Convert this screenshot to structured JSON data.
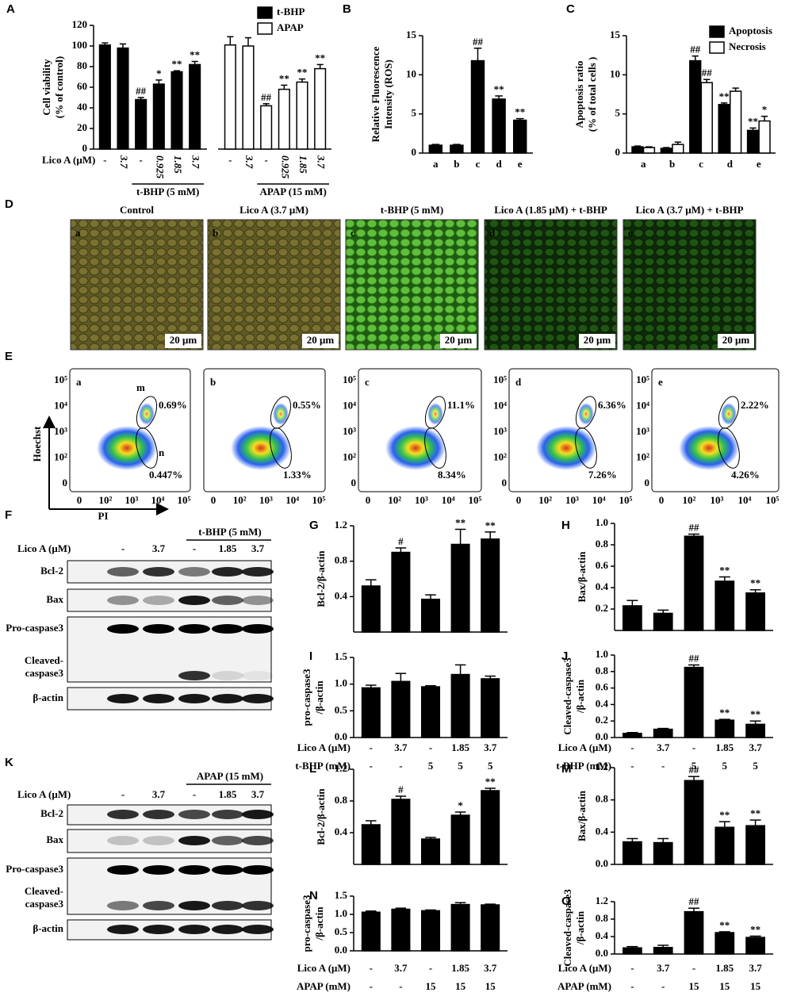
{
  "chart_data": [
    {
      "panel": "A",
      "type": "bar",
      "ylabel": [
        "Cell viability",
        "(% of control)"
      ],
      "ylim": [
        0,
        120
      ],
      "yticks": [
        0,
        20,
        40,
        60,
        80,
        100,
        120
      ],
      "x_label": "Lico A (μM)",
      "categories": [
        "-",
        "3.7",
        "-",
        "0.925",
        "1.85",
        "3.7",
        "-",
        "3.7",
        "-",
        "0.925",
        "1.85",
        "3.7"
      ],
      "groups": [
        "t-BHP (5 mM)",
        "APAP (15 mM)"
      ],
      "series": [
        {
          "name": "t-BHP",
          "color": "#000000",
          "values": [
            101,
            98,
            48,
            63,
            75,
            82,
            null,
            null,
            null,
            null,
            null,
            null
          ],
          "errors": [
            2,
            4,
            2,
            4,
            1,
            3,
            null,
            null,
            null,
            null,
            null,
            null
          ],
          "annotations": [
            null,
            null,
            "##",
            "*",
            "**",
            "**",
            null,
            null,
            null,
            null,
            null,
            null
          ]
        },
        {
          "name": "APAP",
          "color": "#ffffff",
          "values": [
            null,
            null,
            null,
            null,
            null,
            null,
            101,
            100,
            42,
            58,
            65,
            78
          ],
          "errors": [
            null,
            null,
            null,
            null,
            null,
            null,
            8,
            8,
            2,
            4,
            3,
            4
          ],
          "annotations": [
            null,
            null,
            null,
            null,
            null,
            null,
            null,
            null,
            "##",
            "**",
            "**",
            "**"
          ]
        }
      ]
    },
    {
      "panel": "B",
      "type": "bar",
      "ylabel": [
        "Relative Fluorescence",
        "Intensity (ROS)"
      ],
      "ylim": [
        0,
        15
      ],
      "yticks": [
        0,
        5,
        10,
        15
      ],
      "categories": [
        "a",
        "b",
        "c",
        "d",
        "e"
      ],
      "series": [
        {
          "color": "#000000",
          "values": [
            1.0,
            1.0,
            11.8,
            6.9,
            4.2
          ],
          "errors": [
            0.1,
            0.1,
            1.6,
            0.4,
            0.2
          ],
          "annotations": [
            null,
            null,
            "##",
            "**",
            "**"
          ]
        }
      ]
    },
    {
      "panel": "C",
      "type": "bar",
      "ylabel": [
        "Apoptosis ratio",
        "(% of total cells )"
      ],
      "ylim": [
        0,
        15
      ],
      "yticks": [
        0,
        5,
        10,
        15
      ],
      "categories": [
        "a",
        "b",
        "c",
        "d",
        "e"
      ],
      "series": [
        {
          "name": "Apoptosis",
          "color": "#000000",
          "values": [
            0.8,
            0.6,
            11.8,
            6.2,
            2.9
          ],
          "errors": [
            0.1,
            0.1,
            0.6,
            0.2,
            0.3
          ],
          "annotations": [
            null,
            null,
            "##",
            "**",
            "**"
          ]
        },
        {
          "name": "Necrosis",
          "color": "#ffffff",
          "values": [
            0.7,
            1.1,
            9.0,
            7.9,
            4.1
          ],
          "errors": [
            0.1,
            0.3,
            0.4,
            0.4,
            0.6
          ],
          "annotations": [
            null,
            null,
            "##",
            null,
            "*"
          ]
        }
      ]
    },
    {
      "panel": "G",
      "type": "bar",
      "ylabel": [
        "Bcl-2/β-actin"
      ],
      "ylim": [
        0,
        1.2
      ],
      "yticks": [
        0.4,
        0.8,
        1.2
      ],
      "series": [
        {
          "color": "#000000",
          "values": [
            0.52,
            0.9,
            0.37,
            0.99,
            1.05
          ],
          "errors": [
            0.07,
            0.05,
            0.05,
            0.17,
            0.08
          ],
          "annotations": [
            null,
            "#",
            null,
            "**",
            "**"
          ]
        }
      ]
    },
    {
      "panel": "H",
      "type": "bar",
      "ylabel": [
        "Bax/β-actin"
      ],
      "ylim": [
        0,
        1.0
      ],
      "yticks": [
        0.2,
        0.4,
        0.6,
        0.8,
        {
          "value": 1,
          "label": "1.0"
        }
      ],
      "series": [
        {
          "color": "#000000",
          "values": [
            0.23,
            0.16,
            0.88,
            0.46,
            0.35
          ],
          "errors": [
            0.05,
            0.03,
            0.02,
            0.04,
            0.03
          ],
          "annotations": [
            null,
            null,
            "##",
            "**",
            "**"
          ]
        }
      ]
    },
    {
      "panel": "I",
      "type": "bar",
      "ylabel": [
        "pro-caspase3",
        "/β-actin"
      ],
      "ylim": [
        0,
        1.5
      ],
      "yticks": [
        {
          "value": 0,
          "label": "0.0"
        },
        0.5,
        {
          "value": 1,
          "label": "1.0"
        },
        1.5
      ],
      "series": [
        {
          "color": "#000000",
          "values": [
            0.93,
            1.05,
            0.95,
            1.18,
            1.1
          ],
          "errors": [
            0.05,
            0.15,
            0.02,
            0.18,
            0.05
          ],
          "annotations": [
            null,
            null,
            null,
            null,
            null
          ]
        }
      ],
      "xrows": [
        {
          "label": "Lico A (μM)",
          "values": [
            "-",
            "3.7",
            "-",
            "1.85",
            "3.7"
          ]
        },
        {
          "label": "t-BHP (mM)",
          "values": [
            "-",
            "-",
            "5",
            "5",
            "5"
          ]
        }
      ]
    },
    {
      "panel": "J",
      "type": "bar",
      "ylabel": [
        "Cleaved-caspase3",
        "/β-actin"
      ],
      "ylim": [
        0,
        1.0
      ],
      "yticks": [
        {
          "value": 0,
          "label": "0.0"
        },
        0.2,
        0.4,
        0.6,
        0.8,
        {
          "value": 1,
          "label": "1.0"
        }
      ],
      "series": [
        {
          "color": "#000000",
          "values": [
            0.05,
            0.1,
            0.85,
            0.21,
            0.16
          ],
          "errors": [
            0.01,
            0.01,
            0.03,
            0.01,
            0.04
          ],
          "annotations": [
            null,
            null,
            "##",
            "**",
            "**"
          ]
        }
      ],
      "xrows": [
        {
          "label": "Lico A (μM)",
          "values": [
            "-",
            "3.7",
            "-",
            "1.85",
            "3.7"
          ]
        },
        {
          "label": "t-BHP (mM)",
          "values": [
            "-",
            "-",
            "5",
            "5",
            "5"
          ]
        }
      ]
    },
    {
      "panel": "L",
      "type": "bar",
      "ylabel": [
        "Bcl-2/β-actin"
      ],
      "ylim": [
        0,
        1.2
      ],
      "yticks": [
        0.4,
        0.8,
        1.2
      ],
      "series": [
        {
          "color": "#000000",
          "values": [
            0.5,
            0.82,
            0.32,
            0.62,
            0.93
          ],
          "errors": [
            0.05,
            0.04,
            0.02,
            0.04,
            0.03
          ],
          "annotations": [
            null,
            "#",
            null,
            "*",
            "**"
          ]
        }
      ]
    },
    {
      "panel": "M",
      "type": "bar",
      "ylabel": [
        "Bax/β-actin"
      ],
      "ylim": [
        0,
        1.2
      ],
      "yticks": [
        {
          "value": 0,
          "label": "0.0"
        },
        0.4,
        0.8,
        1.2
      ],
      "series": [
        {
          "color": "#000000",
          "values": [
            0.28,
            0.27,
            1.04,
            0.46,
            0.48
          ],
          "errors": [
            0.04,
            0.05,
            0.05,
            0.07,
            0.07
          ],
          "annotations": [
            null,
            null,
            "##",
            "**",
            "**"
          ]
        }
      ]
    },
    {
      "panel": "N",
      "type": "bar",
      "ylabel": [
        "pro-caspase3",
        "/β-actin"
      ],
      "ylim": [
        0,
        1.5
      ],
      "yticks": [
        {
          "value": 0,
          "label": "0.0"
        },
        0.5,
        {
          "value": 1,
          "label": "1.0"
        },
        1.5
      ],
      "series": [
        {
          "color": "#000000",
          "values": [
            1.06,
            1.14,
            1.1,
            1.27,
            1.26
          ],
          "errors": [
            0.03,
            0.03,
            0.02,
            0.05,
            0.02
          ],
          "annotations": [
            null,
            null,
            null,
            null,
            null
          ]
        }
      ],
      "xrows": [
        {
          "label": "Lico A (μM)",
          "values": [
            "-",
            "3.7",
            "-",
            "1.85",
            "3.7"
          ]
        },
        {
          "label": "APAP (mM)",
          "values": [
            "-",
            "-",
            "15",
            "15",
            "15"
          ]
        }
      ]
    },
    {
      "panel": "O",
      "type": "bar",
      "ylabel": [
        "Cleaved-caspase3",
        "/β-actin"
      ],
      "ylim": [
        0,
        1.2
      ],
      "yticks": [
        {
          "value": 0,
          "label": "0.0"
        },
        0.4,
        0.8,
        1.2
      ],
      "series": [
        {
          "color": "#000000",
          "values": [
            0.14,
            0.15,
            0.97,
            0.49,
            0.38
          ],
          "errors": [
            0.03,
            0.05,
            0.08,
            0.02,
            0.03
          ],
          "annotations": [
            null,
            null,
            "##",
            "**",
            "**"
          ]
        }
      ],
      "xrows": [
        {
          "label": "Lico A (μM)",
          "values": [
            "-",
            "3.7",
            "-",
            "1.85",
            "3.7"
          ]
        },
        {
          "label": "APAP (mM)",
          "values": [
            "-",
            "-",
            "15",
            "15",
            "15"
          ]
        }
      ]
    }
  ],
  "microscopy": {
    "panel": "D",
    "scale_bar": "20 μm",
    "images": [
      {
        "letter": "a",
        "title": "Control"
      },
      {
        "letter": "b",
        "title": "Lico A (3.7 μM)"
      },
      {
        "letter": "c",
        "title": "t-BHP (5 mM)"
      },
      {
        "letter": "d",
        "title": "Lico A (1.85 μM) + t-BHP"
      },
      {
        "letter": "e",
        "title": "Lico A (3.7 μM) + t-BHP"
      }
    ]
  },
  "flow": {
    "panel": "E",
    "x_label": "PI",
    "y_label": "Hoechst",
    "gate_labels": [
      "m",
      "n"
    ],
    "ticks": [
      "0",
      "10²",
      "10³",
      "10⁴",
      "10⁵"
    ],
    "plots": [
      {
        "letter": "a",
        "upper": "0.69%",
        "lower": "0.447%"
      },
      {
        "letter": "b",
        "upper": "0.55%",
        "lower": "1.33%"
      },
      {
        "letter": "c",
        "upper": "11.1%",
        "lower": "8.34%"
      },
      {
        "letter": "d",
        "upper": "6.36%",
        "lower": "7.26%"
      },
      {
        "letter": "e",
        "upper": "2.22%",
        "lower": "4.26%"
      }
    ]
  },
  "blots": [
    {
      "panel": "F",
      "treatment": "t-BHP (5 mM)",
      "row_label": "Lico A (μM)",
      "lanes": [
        "-",
        "3.7",
        "-",
        "1.85",
        "3.7"
      ],
      "bands": [
        [
          "Bcl-2"
        ],
        [
          "Bax"
        ],
        [
          "Pro-caspase3"
        ],
        [
          "Cleaved-",
          "caspase3"
        ],
        [
          "β-actin"
        ]
      ]
    },
    {
      "panel": "K",
      "treatment": "APAP (15 mM)",
      "row_label": "Lico A (μM)",
      "lanes": [
        "-",
        "3.7",
        "-",
        "1.85",
        "3.7"
      ],
      "bands": [
        [
          "Bcl-2"
        ],
        [
          "Bax"
        ],
        [
          "Pro-caspase3"
        ],
        [
          "Cleaved-",
          "caspase3"
        ],
        [
          "β-actin"
        ]
      ]
    }
  ]
}
